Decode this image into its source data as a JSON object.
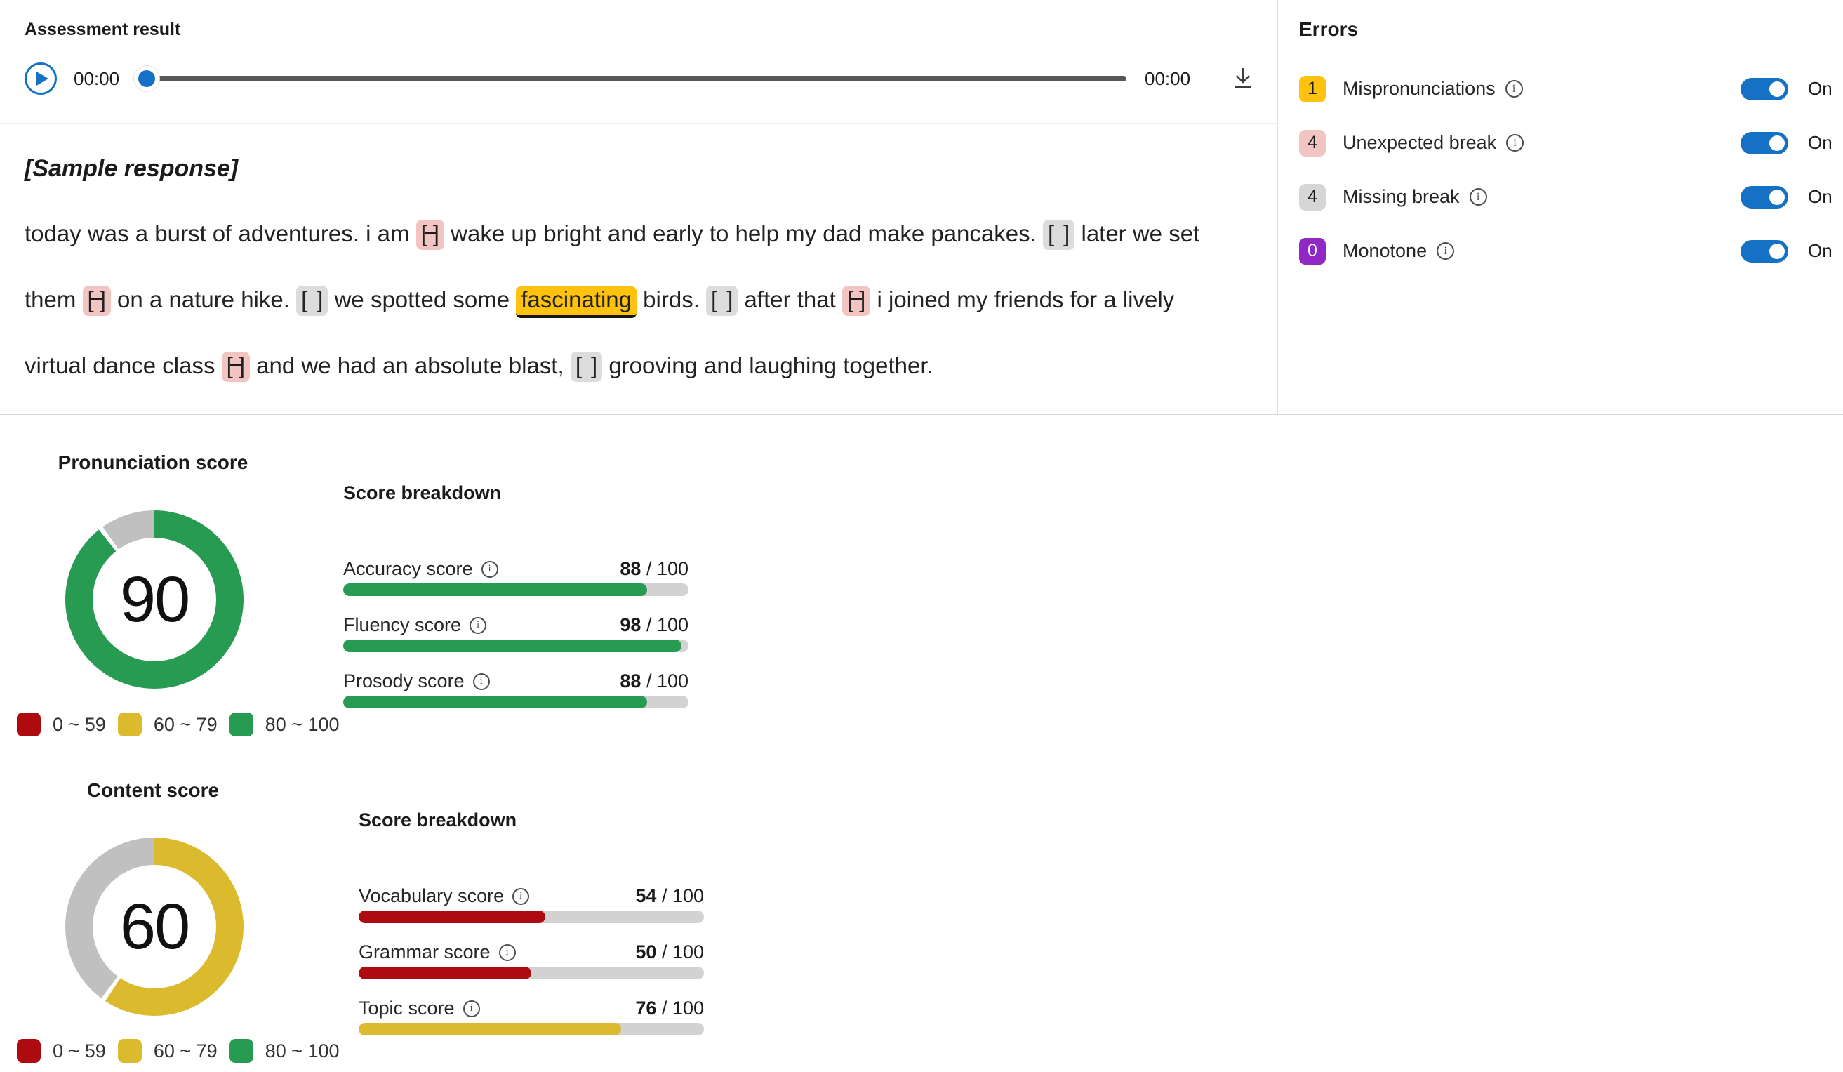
{
  "assessment": {
    "title": "Assessment result"
  },
  "player": {
    "current_time": "00:00",
    "total_time": "00:00"
  },
  "transcript": {
    "heading": "[Sample response]",
    "parts": [
      {
        "type": "text",
        "text": "today was a burst of adventures. i am "
      },
      {
        "type": "unexpected_break"
      },
      {
        "type": "text",
        "text": " wake up bright and early to help my dad make pancakes. "
      },
      {
        "type": "missing_break"
      },
      {
        "type": "text",
        "text": " later we set them "
      },
      {
        "type": "unexpected_break"
      },
      {
        "type": "text",
        "text": " on a nature hike. "
      },
      {
        "type": "missing_break"
      },
      {
        "type": "text",
        "text": " we spotted some "
      },
      {
        "type": "mispronunciation",
        "text": "fascinating"
      },
      {
        "type": "text",
        "text": " birds. "
      },
      {
        "type": "missing_break"
      },
      {
        "type": "text",
        "text": " after that "
      },
      {
        "type": "unexpected_break"
      },
      {
        "type": "text",
        "text": " i joined my friends for a lively virtual dance class "
      },
      {
        "type": "unexpected_break"
      },
      {
        "type": "text",
        "text": " and we had an absolute blast, "
      },
      {
        "type": "missing_break"
      },
      {
        "type": "text",
        "text": " grooving and laughing together."
      }
    ]
  },
  "errors": {
    "title": "Errors",
    "items": [
      {
        "count": "1",
        "label": "Mispronunciations",
        "badge_color": "#FFC20E",
        "badge_text_color": "#1b1b1b",
        "state": "On"
      },
      {
        "count": "4",
        "label": "Unexpected break",
        "badge_color": "#F2C5C3",
        "badge_text_color": "#1b1b1b",
        "state": "On"
      },
      {
        "count": "4",
        "label": "Missing break",
        "badge_color": "#D6D6D6",
        "badge_text_color": "#1b1b1b",
        "state": "On"
      },
      {
        "count": "0",
        "label": "Monotone",
        "badge_color": "#9127C4",
        "badge_text_color": "#ffffff",
        "state": "On"
      }
    ]
  },
  "pronunciation": {
    "title": "Pronunciation score",
    "score": 90,
    "score_color": "#279B52",
    "breakdown_title": "Score breakdown",
    "metrics": [
      {
        "label": "Accuracy score",
        "value": 88,
        "max_label": " / 100",
        "color": "#279B52"
      },
      {
        "label": "Fluency score",
        "value": 98,
        "max_label": " / 100",
        "color": "#279B52"
      },
      {
        "label": "Prosody score",
        "value": 88,
        "max_label": " / 100",
        "color": "#279B52"
      }
    ]
  },
  "content": {
    "title": "Content score",
    "score": 60,
    "score_color": "#DCBA2E",
    "breakdown_title": "Score breakdown",
    "metrics": [
      {
        "label": "Vocabulary score",
        "value": 54,
        "max_label": " / 100",
        "color": "#AE0B10"
      },
      {
        "label": "Grammar score",
        "value": 50,
        "max_label": " / 100",
        "color": "#AE0B10"
      },
      {
        "label": "Topic score",
        "value": 76,
        "max_label": " / 100",
        "color": "#DCBA2E"
      }
    ]
  },
  "legend": {
    "ranges": [
      {
        "label": "0 ~ 59",
        "color": "#AE0B10"
      },
      {
        "label": "60 ~ 79",
        "color": "#DCBA2E"
      },
      {
        "label": "80 ~ 100",
        "color": "#279B52"
      }
    ]
  },
  "colors": {
    "toggle_on": "#1471C4",
    "accent_blue": "#1471C4",
    "gauge_remainder": "#C0C0C0",
    "mispronunciation_highlight": "#FFC20E",
    "unexpected_break_bg": "#F2C5C3",
    "missing_break_bg": "#DCDCDC"
  },
  "chart_data": [
    {
      "type": "gauge",
      "title": "Pronunciation score",
      "value": 90,
      "max": 100,
      "legend": [
        "0 ~ 59",
        "60 ~ 79",
        "80 ~ 100"
      ],
      "legend_colors": [
        "#AE0B10",
        "#DCBA2E",
        "#279B52"
      ]
    },
    {
      "type": "bar",
      "title": "Score breakdown",
      "categories": [
        "Accuracy score",
        "Fluency score",
        "Prosody score"
      ],
      "values": [
        88,
        98,
        88
      ],
      "xlim": [
        0,
        100
      ]
    },
    {
      "type": "gauge",
      "title": "Content score",
      "value": 60,
      "max": 100,
      "legend": [
        "0 ~ 59",
        "60 ~ 79",
        "80 ~ 100"
      ],
      "legend_colors": [
        "#AE0B10",
        "#DCBA2E",
        "#279B52"
      ]
    },
    {
      "type": "bar",
      "title": "Score breakdown",
      "categories": [
        "Vocabulary score",
        "Grammar score",
        "Topic score"
      ],
      "values": [
        54,
        50,
        76
      ],
      "xlim": [
        0,
        100
      ]
    }
  ]
}
